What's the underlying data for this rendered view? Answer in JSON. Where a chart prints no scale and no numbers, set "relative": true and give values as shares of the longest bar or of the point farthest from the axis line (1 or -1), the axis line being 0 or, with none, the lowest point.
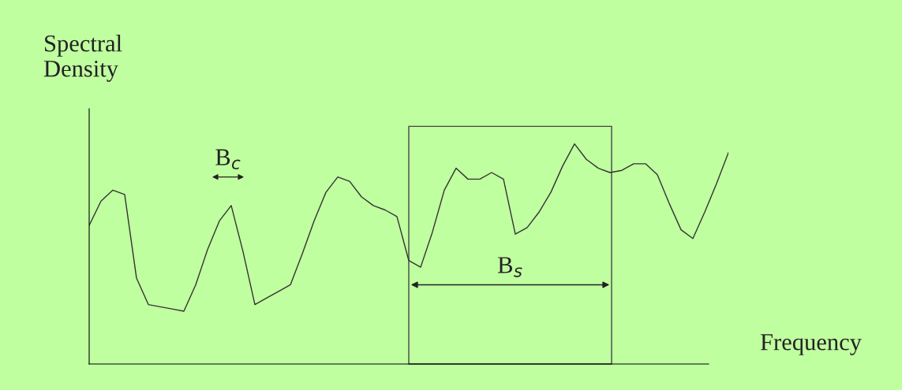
{
  "chart_data": {
    "type": "line",
    "relative": true,
    "xlabel": "Frequency",
    "ylabel": "Spectral\nDensity",
    "categories": [
      null,
      null,
      null,
      null,
      null,
      null,
      null,
      null,
      null,
      null,
      null,
      null,
      null,
      null,
      null,
      null,
      null,
      null,
      null,
      null,
      null,
      null,
      null,
      null,
      null,
      null,
      null,
      null,
      null,
      null,
      null,
      null,
      null,
      null,
      null,
      null,
      null,
      null,
      null,
      null,
      null,
      null,
      null,
      null,
      null,
      null,
      null,
      null,
      null,
      null,
      null,
      null,
      null,
      null,
      null
    ],
    "series": [
      {
        "color": "#333333",
        "values": [
          0.63,
          0.74,
          0.79,
          0.77,
          0.39,
          0.27,
          0.26,
          0.25,
          0.24,
          0.36,
          0.52,
          0.65,
          0.72,
          0.51,
          0.27,
          0.3,
          0.33,
          0.36,
          0.5,
          0.65,
          0.78,
          0.85,
          0.83,
          0.76,
          0.72,
          0.7,
          0.67,
          0.47,
          0.44,
          0.6,
          0.79,
          0.89,
          0.84,
          0.84,
          0.87,
          0.84,
          0.59,
          0.62,
          0.69,
          0.78,
          0.9,
          1,
          0.93,
          0.89,
          0.87,
          0.88,
          0.91,
          0.91,
          0.86,
          0.73,
          0.61,
          0.57,
          0.69,
          0.82,
          0.96
        ]
      }
    ],
    "annotations": [
      "B$_{c}$",
      "B$_{s}$"
    ],
    "legend": false,
    "marker": "none",
    "line_style": "solid"
  }
}
